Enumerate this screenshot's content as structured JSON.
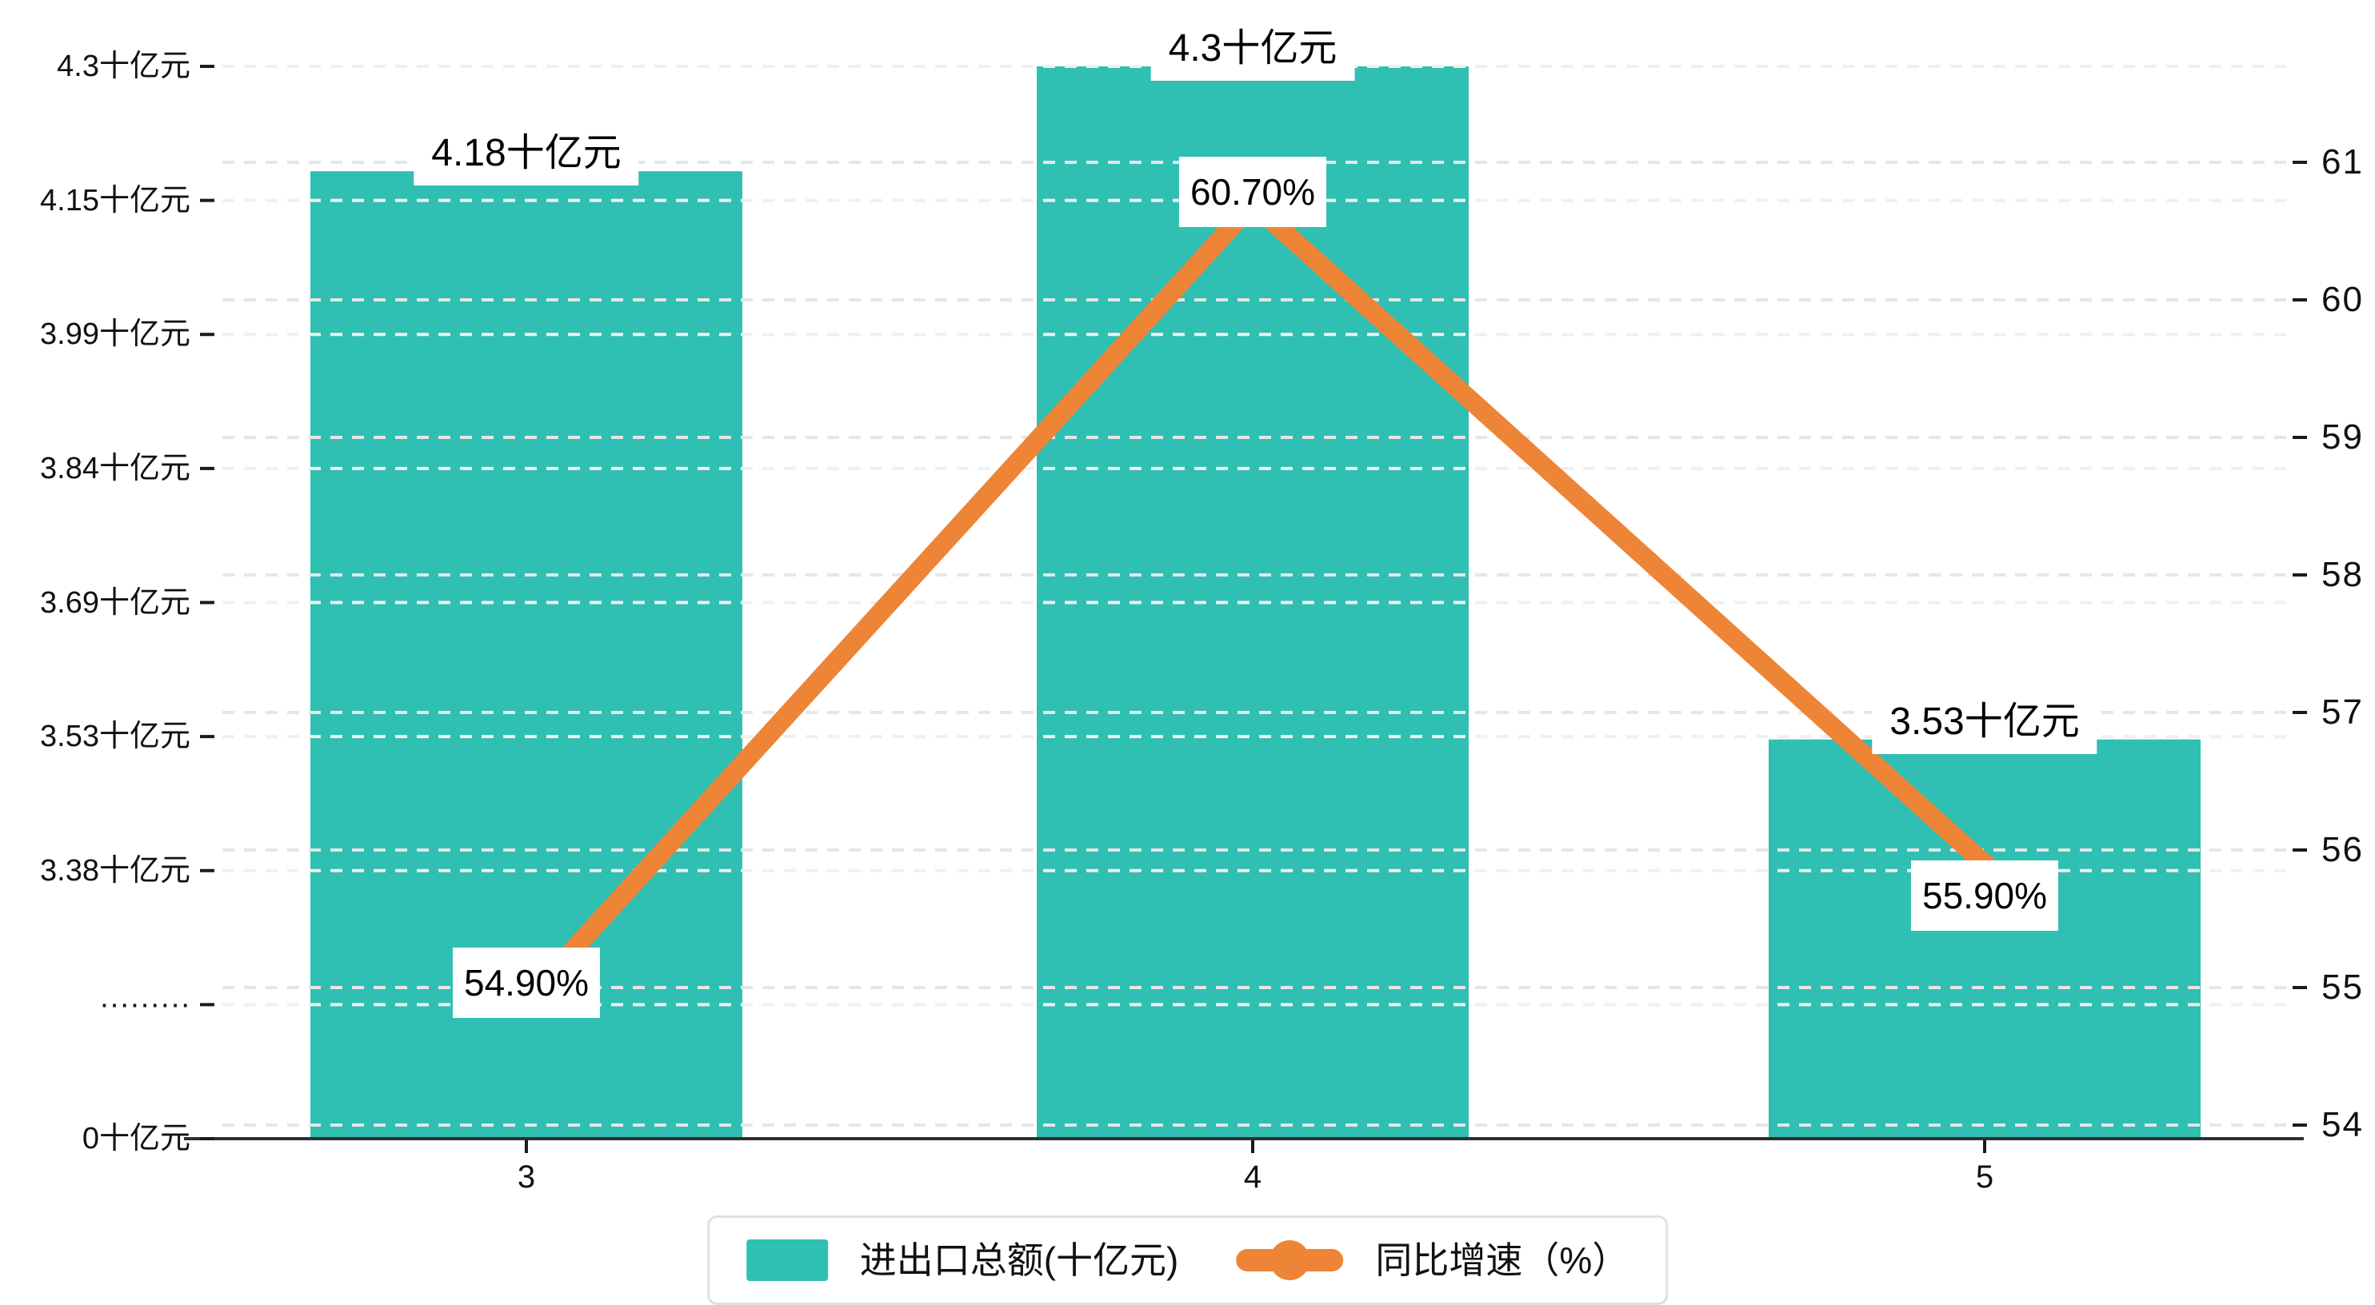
{
  "chart_data": {
    "type": "combo",
    "categories": [
      "3",
      "4",
      "5"
    ],
    "series": [
      {
        "name": "进出口总额(十亿元)",
        "type": "bar",
        "values": [
          4.18,
          4.3,
          3.53
        ],
        "labels": [
          "4.18十亿元",
          "4.3十亿元",
          "3.53十亿元"
        ],
        "color": "#30BFB3"
      },
      {
        "name": "同比增速（%）",
        "type": "line",
        "values": [
          54.9,
          60.7,
          55.9
        ],
        "labels": [
          "54.90%",
          "60.70%",
          "55.90%"
        ],
        "color": "#EE8435"
      }
    ],
    "left_axis": {
      "tick_labels": [
        "4.3十亿元",
        "4.15十亿元",
        "3.99十亿元",
        "3.84十亿元",
        "3.69十亿元",
        "3.53十亿元",
        "3.38十亿元",
        "·········",
        "0十亿元"
      ],
      "top_value": 4.3,
      "break_bottom_value": 3.38,
      "zero_label": "0十亿元"
    },
    "right_axis": {
      "tick_labels": [
        "61",
        "60",
        "59",
        "58",
        "57",
        "56",
        "55",
        "54"
      ],
      "min": 54,
      "max": 61
    },
    "legend_position": "bottom-center",
    "grid": "dashed-horizontal",
    "colors": {
      "bar": "#30BFB3",
      "line": "#EE8435",
      "axis": "#2f2f2f",
      "grid_left": "#f0f0f0",
      "grid_right": "#e6e6e6",
      "label_bg": "#ffffff",
      "legend_border": "#e0e0e0"
    }
  }
}
